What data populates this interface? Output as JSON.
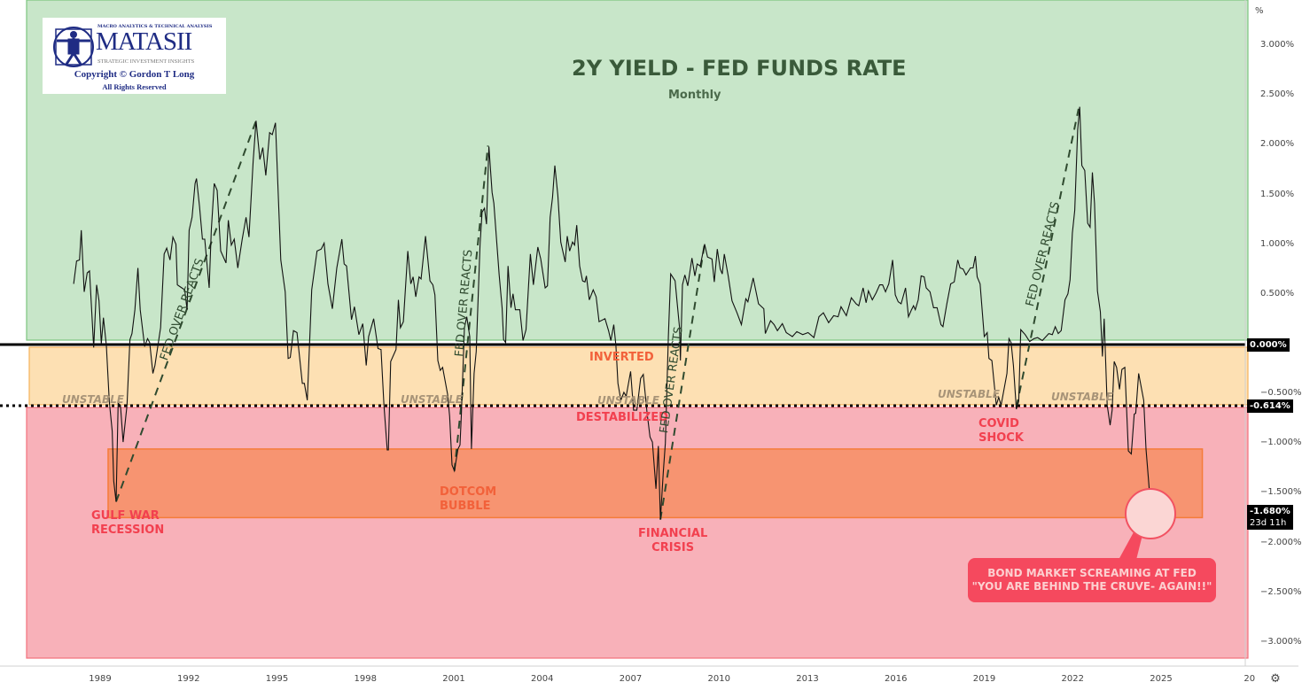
{
  "logo": {
    "tagline": "MACRO ANALYTICS & TECHNICAL ANALYSIS",
    "brand": "MATASII",
    "subtitle": "STRATEGIC INVESTMENT INSIGHTS",
    "copyright": "Copyright © Gordon T Long",
    "rights": "All Rights Reserved"
  },
  "chart_data": {
    "type": "line",
    "title": "2Y YIELD - FED FUNDS RATE",
    "subtitle": "Monthly",
    "y_unit": "%",
    "ylim": [
      -3.2,
      3.45
    ],
    "xlim": [
      1987.1,
      2027.9
    ],
    "y_ticks": [
      "3.000%",
      "2.500%",
      "2.000%",
      "1.500%",
      "1.000%",
      "0.500%",
      "-0.500%",
      "-1.000%",
      "-1.500%",
      "-2.000%",
      "-2.500%",
      "-3.000%"
    ],
    "y_tick_values": [
      3,
      2.5,
      2,
      1.5,
      1,
      0.5,
      -0.5,
      -1,
      -1.5,
      -2,
      -2.5,
      -3
    ],
    "x_ticks": [
      "1989",
      "1992",
      "1995",
      "1998",
      "2001",
      "2004",
      "2007",
      "2010",
      "2013",
      "2016",
      "2019",
      "2022",
      "2025",
      "20"
    ],
    "x_tick_values": [
      1989,
      1992,
      1995,
      1998,
      2001,
      2004,
      2007,
      2010,
      2013,
      2016,
      2019,
      2022,
      2025,
      2028
    ],
    "grid": false,
    "price_badges": [
      {
        "value": 0,
        "label": "0.000%"
      },
      {
        "value": -0.614,
        "label": "-0.614%"
      },
      {
        "value": -1.68,
        "label": "-1.680%",
        "sub": "23d 11h"
      }
    ],
    "zones": [
      {
        "name": "positive",
        "from": 0,
        "to": 3.45,
        "color": "#c8e6c9"
      },
      {
        "name": "inverted",
        "from": -0.614,
        "to": 0,
        "color": "#fde0b3"
      },
      {
        "name": "destabilized",
        "from": -3.2,
        "to": -0.614,
        "color": "#f8b1b9"
      }
    ],
    "target_box": {
      "x0": 1989.27,
      "x1": 2026.4,
      "y0": -1.74,
      "y1": -1.05,
      "color": "#f79471"
    },
    "fed_over_reacts_lines": [
      [
        [
          1989.54,
          -1.58
        ],
        [
          1994.29,
          2.25
        ]
      ],
      [
        [
          2001.02,
          -1.27
        ],
        [
          2002.16,
          2.0
        ]
      ],
      [
        [
          2008.01,
          -1.76
        ],
        [
          2009.51,
          1.01
        ]
      ],
      [
        [
          2020.09,
          -0.63
        ],
        [
          2022.2,
          2.37
        ]
      ]
    ],
    "points": [
      [
        1988.1,
        0.61
      ],
      [
        1988.2,
        0.84
      ],
      [
        1988.3,
        0.85
      ],
      [
        1988.36,
        1.15
      ],
      [
        1988.46,
        0.53
      ],
      [
        1988.56,
        0.72
      ],
      [
        1988.64,
        0.74
      ],
      [
        1988.78,
        -0.03
      ],
      [
        1988.88,
        0.6
      ],
      [
        1988.96,
        0.44
      ],
      [
        1989.04,
        0.01
      ],
      [
        1989.11,
        0.27
      ],
      [
        1989.21,
        -0.01
      ],
      [
        1989.31,
        -0.57
      ],
      [
        1989.41,
        -0.87
      ],
      [
        1989.46,
        -1.37
      ],
      [
        1989.54,
        -1.58
      ],
      [
        1989.61,
        -0.59
      ],
      [
        1989.69,
        -0.61
      ],
      [
        1989.78,
        -0.98
      ],
      [
        1989.91,
        -0.61
      ],
      [
        1990.01,
        0.05
      ],
      [
        1990.08,
        0.11
      ],
      [
        1990.18,
        0.35
      ],
      [
        1990.28,
        0.77
      ],
      [
        1990.36,
        0.35
      ],
      [
        1990.51,
        -0.02
      ],
      [
        1990.61,
        0.06
      ],
      [
        1990.68,
        0.02
      ],
      [
        1990.79,
        -0.29
      ],
      [
        1990.86,
        -0.21
      ],
      [
        1991.05,
        0.17
      ],
      [
        1991.17,
        0.91
      ],
      [
        1991.26,
        0.97
      ],
      [
        1991.37,
        0.85
      ],
      [
        1991.47,
        1.08
      ],
      [
        1991.57,
        1.01
      ],
      [
        1991.62,
        0.6
      ],
      [
        1991.77,
        0.57
      ],
      [
        1991.87,
        0.55
      ],
      [
        1991.95,
        0.35
      ],
      [
        1992.02,
        1.15
      ],
      [
        1992.12,
        1.28
      ],
      [
        1992.22,
        1.62
      ],
      [
        1992.27,
        1.67
      ],
      [
        1992.37,
        1.39
      ],
      [
        1992.47,
        1.06
      ],
      [
        1992.55,
        1.06
      ],
      [
        1992.7,
        0.57
      ],
      [
        1992.77,
        1.15
      ],
      [
        1992.87,
        1.62
      ],
      [
        1992.97,
        1.55
      ],
      [
        1993.09,
        0.94
      ],
      [
        1993.27,
        0.82
      ],
      [
        1993.35,
        1.25
      ],
      [
        1993.45,
        1.0
      ],
      [
        1993.55,
        1.06
      ],
      [
        1993.67,
        0.77
      ],
      [
        1993.82,
        1.06
      ],
      [
        1993.95,
        1.28
      ],
      [
        1994.05,
        1.08
      ],
      [
        1994.19,
        1.84
      ],
      [
        1994.29,
        2.25
      ],
      [
        1994.42,
        1.86
      ],
      [
        1994.52,
        1.98
      ],
      [
        1994.62,
        1.7
      ],
      [
        1994.75,
        2.13
      ],
      [
        1994.84,
        2.11
      ],
      [
        1994.95,
        2.23
      ],
      [
        1995.13,
        0.85
      ],
      [
        1995.28,
        0.53
      ],
      [
        1995.38,
        -0.14
      ],
      [
        1995.45,
        -0.13
      ],
      [
        1995.56,
        0.14
      ],
      [
        1995.68,
        0.12
      ],
      [
        1995.86,
        -0.39
      ],
      [
        1995.93,
        -0.39
      ],
      [
        1996.03,
        -0.56
      ],
      [
        1996.18,
        0.55
      ],
      [
        1996.36,
        0.94
      ],
      [
        1996.5,
        0.96
      ],
      [
        1996.6,
        1.02
      ],
      [
        1996.73,
        0.61
      ],
      [
        1996.88,
        0.36
      ],
      [
        1997.03,
        0.77
      ],
      [
        1997.2,
        1.06
      ],
      [
        1997.28,
        0.81
      ],
      [
        1997.36,
        0.79
      ],
      [
        1997.53,
        0.25
      ],
      [
        1997.63,
        0.38
      ],
      [
        1997.78,
        0.1
      ],
      [
        1997.91,
        0.21
      ],
      [
        1998.03,
        -0.21
      ],
      [
        1998.11,
        0.08
      ],
      [
        1998.28,
        0.26
      ],
      [
        1998.43,
        -0.04
      ],
      [
        1998.53,
        -0.05
      ],
      [
        1998.63,
        -0.61
      ],
      [
        1998.74,
        -1.06
      ],
      [
        1998.78,
        -1.06
      ],
      [
        1998.86,
        -0.17
      ],
      [
        1999.04,
        -0.05
      ],
      [
        1999.12,
        0.45
      ],
      [
        1999.19,
        0.17
      ],
      [
        1999.29,
        0.23
      ],
      [
        1999.44,
        0.94
      ],
      [
        1999.54,
        0.61
      ],
      [
        1999.62,
        0.68
      ],
      [
        1999.71,
        0.48
      ],
      [
        1999.82,
        0.68
      ],
      [
        1999.89,
        0.66
      ],
      [
        2000.04,
        1.09
      ],
      [
        2000.19,
        0.64
      ],
      [
        2000.29,
        0.6
      ],
      [
        2000.36,
        0.5
      ],
      [
        2000.46,
        -0.16
      ],
      [
        2000.54,
        -0.26
      ],
      [
        2000.62,
        -0.23
      ],
      [
        2000.79,
        -0.5
      ],
      [
        2000.86,
        -0.72
      ],
      [
        2000.94,
        -1.21
      ],
      [
        2001.02,
        -1.27
      ],
      [
        2001.14,
        -1.05
      ],
      [
        2001.21,
        -1.01
      ],
      [
        2001.26,
        -0.69
      ],
      [
        2001.36,
        0.17
      ],
      [
        2001.44,
        0.28
      ],
      [
        2001.54,
        0.08
      ],
      [
        2001.6,
        -1.05
      ],
      [
        2001.69,
        -0.29
      ],
      [
        2001.76,
        -0.07
      ],
      [
        2001.89,
        1.0
      ],
      [
        2001.96,
        1.33
      ],
      [
        2002.04,
        1.37
      ],
      [
        2002.11,
        1.21
      ],
      [
        2002.19,
        1.99
      ],
      [
        2002.3,
        1.53
      ],
      [
        2002.36,
        1.42
      ],
      [
        2002.54,
        0.7
      ],
      [
        2002.64,
        0.37
      ],
      [
        2002.69,
        0.05
      ],
      [
        2002.76,
        0.02
      ],
      [
        2002.84,
        0.79
      ],
      [
        2002.94,
        0.37
      ],
      [
        2003.01,
        0.51
      ],
      [
        2003.09,
        0.35
      ],
      [
        2003.24,
        0.35
      ],
      [
        2003.35,
        0.04
      ],
      [
        2003.45,
        0.15
      ],
      [
        2003.6,
        0.91
      ],
      [
        2003.7,
        0.6
      ],
      [
        2003.85,
        0.98
      ],
      [
        2003.95,
        0.86
      ],
      [
        2004.1,
        0.57
      ],
      [
        2004.18,
        0.59
      ],
      [
        2004.27,
        1.28
      ],
      [
        2004.35,
        1.48
      ],
      [
        2004.43,
        1.8
      ],
      [
        2004.53,
        1.5
      ],
      [
        2004.63,
        1.03
      ],
      [
        2004.78,
        0.83
      ],
      [
        2004.85,
        1.09
      ],
      [
        2004.93,
        0.94
      ],
      [
        2005.03,
        1.03
      ],
      [
        2005.1,
        1.0
      ],
      [
        2005.17,
        1.2
      ],
      [
        2005.27,
        0.79
      ],
      [
        2005.37,
        0.64
      ],
      [
        2005.45,
        0.63
      ],
      [
        2005.5,
        0.69
      ],
      [
        2005.6,
        0.45
      ],
      [
        2005.73,
        0.55
      ],
      [
        2005.83,
        0.48
      ],
      [
        2005.93,
        0.23
      ],
      [
        2006.13,
        0.26
      ],
      [
        2006.25,
        0.14
      ],
      [
        2006.33,
        0.04
      ],
      [
        2006.43,
        0.2
      ],
      [
        2006.5,
        -0.01
      ],
      [
        2006.57,
        -0.39
      ],
      [
        2006.67,
        -0.56
      ],
      [
        2006.77,
        -0.48
      ],
      [
        2006.85,
        -0.52
      ],
      [
        2007.0,
        -0.27
      ],
      [
        2007.1,
        -0.66
      ],
      [
        2007.21,
        -0.66
      ],
      [
        2007.34,
        -0.34
      ],
      [
        2007.43,
        -0.3
      ],
      [
        2007.56,
        -0.69
      ],
      [
        2007.66,
        -0.93
      ],
      [
        2007.74,
        -0.98
      ],
      [
        2007.86,
        -1.45
      ],
      [
        2007.94,
        -1.02
      ],
      [
        2008.01,
        -1.76
      ],
      [
        2008.11,
        -1.28
      ],
      [
        2008.18,
        -0.99
      ],
      [
        2008.28,
        0.08
      ],
      [
        2008.36,
        0.71
      ],
      [
        2008.51,
        0.64
      ],
      [
        2008.58,
        0.42
      ],
      [
        2008.66,
        0.17
      ],
      [
        2008.69,
        -0.16
      ],
      [
        2008.76,
        0.6
      ],
      [
        2008.84,
        0.7
      ],
      [
        2008.94,
        0.59
      ],
      [
        2009.08,
        0.87
      ],
      [
        2009.18,
        0.69
      ],
      [
        2009.26,
        0.81
      ],
      [
        2009.36,
        0.79
      ],
      [
        2009.51,
        1.01
      ],
      [
        2009.61,
        0.88
      ],
      [
        2009.76,
        0.86
      ],
      [
        2009.84,
        0.63
      ],
      [
        2009.94,
        0.96
      ],
      [
        2010.04,
        0.76
      ],
      [
        2010.11,
        0.71
      ],
      [
        2010.18,
        0.91
      ],
      [
        2010.31,
        0.69
      ],
      [
        2010.44,
        0.44
      ],
      [
        2010.61,
        0.32
      ],
      [
        2010.76,
        0.2
      ],
      [
        2010.91,
        0.46
      ],
      [
        2010.98,
        0.43
      ],
      [
        2011.16,
        0.67
      ],
      [
        2011.34,
        0.41
      ],
      [
        2011.52,
        0.36
      ],
      [
        2011.57,
        0.11
      ],
      [
        2011.75,
        0.24
      ],
      [
        2011.87,
        0.2
      ],
      [
        2011.98,
        0.14
      ],
      [
        2012.15,
        0.21
      ],
      [
        2012.28,
        0.12
      ],
      [
        2012.49,
        0.08
      ],
      [
        2012.64,
        0.13
      ],
      [
        2012.84,
        0.1
      ],
      [
        2013.02,
        0.12
      ],
      [
        2013.22,
        0.07
      ],
      [
        2013.39,
        0.28
      ],
      [
        2013.54,
        0.32
      ],
      [
        2013.72,
        0.22
      ],
      [
        2013.89,
        0.29
      ],
      [
        2014.04,
        0.28
      ],
      [
        2014.14,
        0.38
      ],
      [
        2014.32,
        0.29
      ],
      [
        2014.49,
        0.47
      ],
      [
        2014.65,
        0.41
      ],
      [
        2014.74,
        0.39
      ],
      [
        2014.89,
        0.57
      ],
      [
        2014.99,
        0.42
      ],
      [
        2015.07,
        0.54
      ],
      [
        2015.2,
        0.45
      ],
      [
        2015.33,
        0.52
      ],
      [
        2015.45,
        0.6
      ],
      [
        2015.55,
        0.6
      ],
      [
        2015.65,
        0.53
      ],
      [
        2015.76,
        0.61
      ],
      [
        2015.89,
        0.85
      ],
      [
        2015.98,
        0.5
      ],
      [
        2016.08,
        0.43
      ],
      [
        2016.18,
        0.41
      ],
      [
        2016.33,
        0.57
      ],
      [
        2016.43,
        0.28
      ],
      [
        2016.53,
        0.35
      ],
      [
        2016.6,
        0.39
      ],
      [
        2016.66,
        0.35
      ],
      [
        2016.76,
        0.45
      ],
      [
        2016.86,
        0.69
      ],
      [
        2016.96,
        0.68
      ],
      [
        2017.03,
        0.57
      ],
      [
        2017.16,
        0.53
      ],
      [
        2017.28,
        0.37
      ],
      [
        2017.4,
        0.37
      ],
      [
        2017.53,
        0.2
      ],
      [
        2017.6,
        0.18
      ],
      [
        2017.73,
        0.41
      ],
      [
        2017.86,
        0.61
      ],
      [
        2017.98,
        0.63
      ],
      [
        2018.1,
        0.85
      ],
      [
        2018.18,
        0.77
      ],
      [
        2018.28,
        0.76
      ],
      [
        2018.38,
        0.7
      ],
      [
        2018.53,
        0.77
      ],
      [
        2018.62,
        0.77
      ],
      [
        2018.7,
        0.89
      ],
      [
        2018.76,
        0.68
      ],
      [
        2018.86,
        0.61
      ],
      [
        2019.0,
        0.08
      ],
      [
        2019.1,
        0.12
      ],
      [
        2019.16,
        -0.14
      ],
      [
        2019.26,
        -0.16
      ],
      [
        2019.41,
        -0.61
      ],
      [
        2019.49,
        -0.53
      ],
      [
        2019.57,
        -0.61
      ],
      [
        2019.77,
        -0.29
      ],
      [
        2019.84,
        0.06
      ],
      [
        2019.91,
        0.02
      ],
      [
        2019.99,
        -0.21
      ],
      [
        2020.09,
        -0.65
      ],
      [
        2020.17,
        -0.57
      ],
      [
        2020.24,
        0.15
      ],
      [
        2020.39,
        0.1
      ],
      [
        2020.54,
        0.03
      ],
      [
        2020.69,
        0.06
      ],
      [
        2020.81,
        0.07
      ],
      [
        2020.97,
        0.04
      ],
      [
        2021.19,
        0.11
      ],
      [
        2021.31,
        0.1
      ],
      [
        2021.41,
        0.18
      ],
      [
        2021.51,
        0.11
      ],
      [
        2021.61,
        0.14
      ],
      [
        2021.74,
        0.45
      ],
      [
        2021.84,
        0.51
      ],
      [
        2021.91,
        0.65
      ],
      [
        2021.99,
        1.12
      ],
      [
        2022.07,
        1.35
      ],
      [
        2022.17,
        2.16
      ],
      [
        2022.24,
        2.39
      ],
      [
        2022.31,
        1.8
      ],
      [
        2022.41,
        1.75
      ],
      [
        2022.51,
        1.22
      ],
      [
        2022.59,
        1.18
      ],
      [
        2022.67,
        1.73
      ],
      [
        2022.74,
        1.42
      ],
      [
        2022.84,
        0.54
      ],
      [
        2022.94,
        0.33
      ],
      [
        2023.01,
        -0.12
      ],
      [
        2023.07,
        0.26
      ],
      [
        2023.17,
        -0.61
      ],
      [
        2023.27,
        -0.81
      ],
      [
        2023.34,
        -0.66
      ],
      [
        2023.41,
        -0.17
      ],
      [
        2023.49,
        -0.23
      ],
      [
        2023.59,
        -0.45
      ],
      [
        2023.67,
        -0.25
      ],
      [
        2023.77,
        -0.23
      ],
      [
        2023.89,
        -1.07
      ],
      [
        2023.99,
        -1.1
      ],
      [
        2024.09,
        -0.7
      ],
      [
        2024.14,
        -0.69
      ],
      [
        2024.24,
        -0.29
      ],
      [
        2024.41,
        -0.56
      ],
      [
        2024.49,
        -1.05
      ],
      [
        2024.66,
        -1.68
      ]
    ]
  },
  "annotations": {
    "inverted": "INVERTED",
    "destabilized": "DESTABILIZED",
    "unstable": "UNSTABLE",
    "fed_over_reacts": "FED OVER REACTS",
    "gulf_war_1": "GULF WAR",
    "gulf_war_2": "RECESSION",
    "dotcom_1": "DOTCOM",
    "dotcom_2": "BUBBLE",
    "financial_1": "FINANCIAL",
    "financial_2": "CRISIS",
    "covid_1": "COVID",
    "covid_2": "SHOCK",
    "callout_1": "BOND MARKET SCREAMING AT FED",
    "callout_2": "\"YOU ARE BEHIND THE CRUVE- AGAIN!!\""
  },
  "axis": {
    "unit_label": "%",
    "settings_icon": "gear-icon"
  }
}
